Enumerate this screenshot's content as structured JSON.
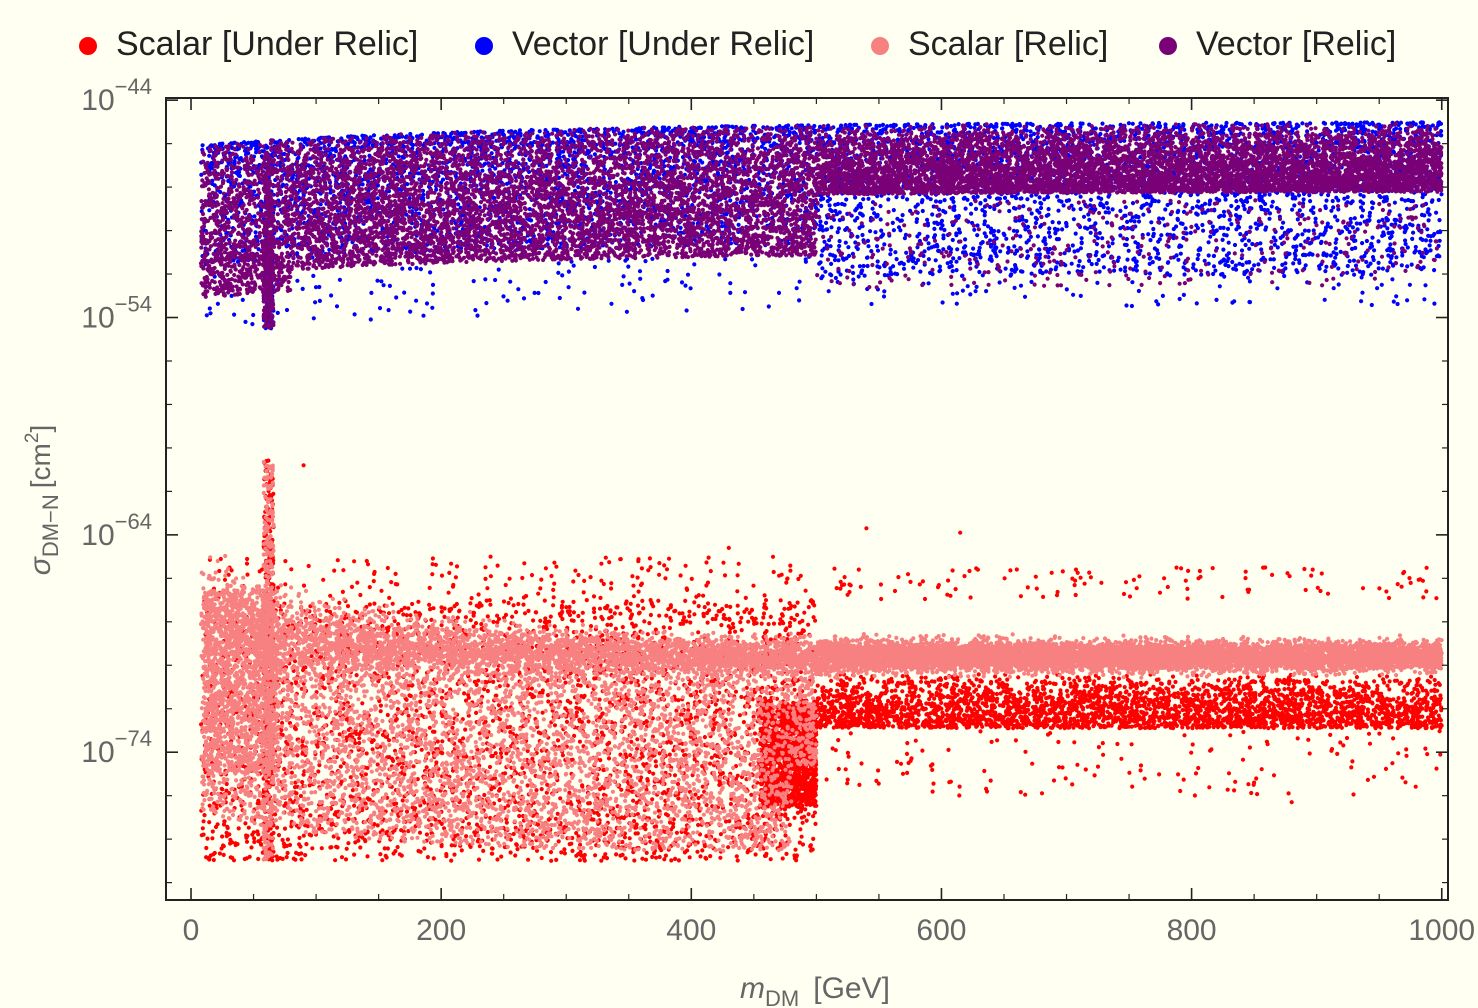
{
  "chart_data": {
    "type": "scatter",
    "xlabel": "m",
    "xlabel_sub": "DM",
    "xlabel_unit": "[GeV]",
    "ylabel": "σ",
    "ylabel_sub": "DM−N",
    "ylabel_unit_prefix": "[cm",
    "ylabel_unit_sup": "2",
    "ylabel_unit_suffix": "]",
    "xlim": [
      -20,
      1005
    ],
    "ylim_exp": [
      -80.8,
      -43.9
    ],
    "y_scale": "log10",
    "x_ticks": [
      {
        "v": 0,
        "label": "0"
      },
      {
        "v": 200,
        "label": "200"
      },
      {
        "v": 400,
        "label": "400"
      },
      {
        "v": 600,
        "label": "600"
      },
      {
        "v": 800,
        "label": "800"
      },
      {
        "v": 1000,
        "label": "1000"
      }
    ],
    "y_ticks": [
      {
        "exp": -44,
        "base": "10",
        "sup": "−44"
      },
      {
        "exp": -54,
        "base": "10",
        "sup": "−54"
      },
      {
        "exp": -64,
        "base": "10",
        "sup": "−64"
      },
      {
        "exp": -74,
        "base": "10",
        "sup": "−74"
      }
    ],
    "legend_position": "top",
    "series": [
      {
        "name": "Scalar [Under Relic]",
        "color": "#ff0000",
        "x_range": [
          10,
          1000
        ],
        "log10_y_range": [
          -79.5,
          -60.5
        ]
      },
      {
        "name": "Vector [Under Relic]",
        "color": "#0000ff",
        "x_range": [
          10,
          1000
        ],
        "log10_y_range": [
          -56,
          -45
        ]
      },
      {
        "name": "Scalar [Relic]",
        "color": "#f78080",
        "x_range": [
          10,
          1000
        ],
        "log10_y_range": [
          -79,
          -61
        ]
      },
      {
        "name": "Vector [Relic]",
        "color": "#7a0078",
        "x_range": [
          10,
          1000
        ],
        "log10_y_range": [
          -55.5,
          -45
        ]
      }
    ]
  }
}
